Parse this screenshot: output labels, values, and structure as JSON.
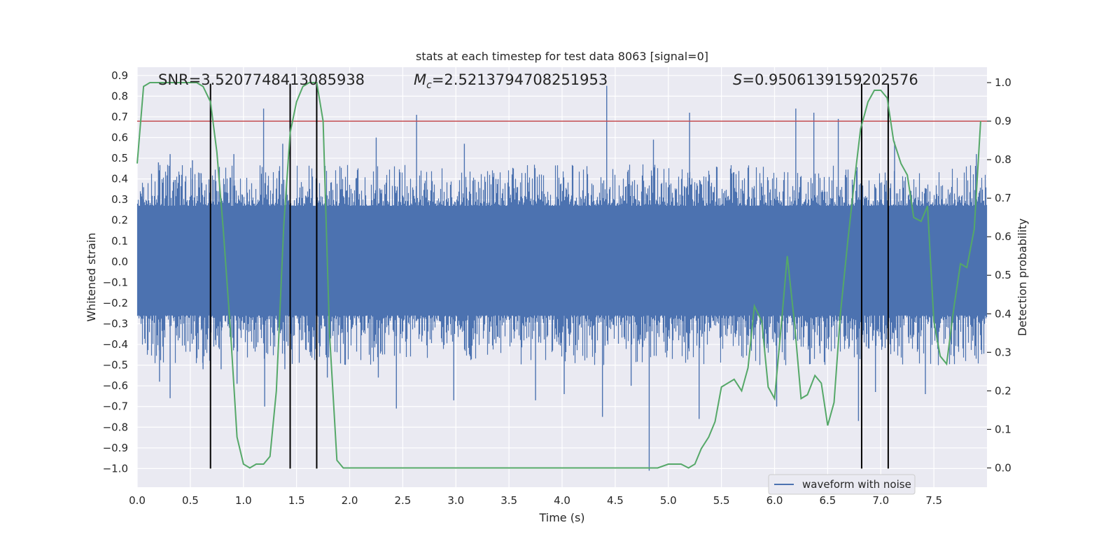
{
  "chart_data": {
    "type": "line",
    "title": "stats at each timestep for test data 8063 [signal=0]",
    "xlabel": "Time (s)",
    "ylabel_left": "Whitened strain",
    "ylabel_right": "Detection probability",
    "xlim": [
      0.0,
      8.0
    ],
    "ylim_left": [
      -1.09,
      0.94
    ],
    "ylim_right": [
      -0.05,
      1.04
    ],
    "x_ticks": [
      "0.0",
      "0.5",
      "1.0",
      "1.5",
      "2.0",
      "2.5",
      "3.0",
      "3.5",
      "4.0",
      "4.5",
      "5.0",
      "5.5",
      "6.0",
      "6.5",
      "7.0",
      "7.5"
    ],
    "y_left_ticks": [
      "0.9",
      "0.8",
      "0.7",
      "0.6",
      "0.5",
      "0.4",
      "0.3",
      "0.2",
      "0.1",
      "0.0",
      "−0.1",
      "−0.2",
      "−0.3",
      "−0.4",
      "−0.5",
      "−0.6",
      "−0.7",
      "−0.8",
      "−0.9",
      "−1.0"
    ],
    "y_right_ticks": [
      "1.0",
      "0.9",
      "0.8",
      "0.7",
      "0.6",
      "0.5",
      "0.4",
      "0.3",
      "0.2",
      "0.1",
      "0.0"
    ],
    "grid": true,
    "legend_position": "lower-right",
    "annotations": {
      "snr": "SNR=3.5207748413085938",
      "mc_symbol": "M",
      "mc_subscript": "c",
      "mc_value": "=2.5213794708251953",
      "s_symbol": "S",
      "s_value": "=0.9506139159202576"
    },
    "threshold": {
      "axis": "right",
      "value": 0.9,
      "color": "#c44e52"
    },
    "event_markers": {
      "x": [
        0.69,
        1.44,
        1.69,
        6.82,
        7.07
      ],
      "ymin": -1.0,
      "ymax": 0.86,
      "color": "#000000"
    },
    "series": [
      {
        "name": "waveform with noise",
        "axis": "left",
        "color": "#4c72b0",
        "envelope_base_upper": 0.27,
        "envelope_base_lower": -0.26,
        "typical_peak_upper": 0.42,
        "typical_peak_lower": -0.45,
        "spikes": [
          {
            "x": 0.06,
            "y": 0.36
          },
          {
            "x": 0.2,
            "y": 0.48
          },
          {
            "x": 0.21,
            "y": -0.58
          },
          {
            "x": 0.31,
            "y": 0.52
          },
          {
            "x": 0.31,
            "y": -0.66
          },
          {
            "x": 0.52,
            "y": 0.49
          },
          {
            "x": 0.62,
            "y": -0.52
          },
          {
            "x": 0.79,
            "y": -0.52
          },
          {
            "x": 0.91,
            "y": 0.52
          },
          {
            "x": 0.94,
            "y": -0.59
          },
          {
            "x": 1.19,
            "y": 0.74
          },
          {
            "x": 1.2,
            "y": -0.7
          },
          {
            "x": 1.37,
            "y": 0.57
          },
          {
            "x": 1.39,
            "y": -0.52
          },
          {
            "x": 1.79,
            "y": -0.56
          },
          {
            "x": 2.25,
            "y": 0.6
          },
          {
            "x": 2.27,
            "y": -0.56
          },
          {
            "x": 2.44,
            "y": -0.71
          },
          {
            "x": 2.63,
            "y": 0.71
          },
          {
            "x": 2.98,
            "y": -0.67
          },
          {
            "x": 3.08,
            "y": 0.57
          },
          {
            "x": 3.75,
            "y": -0.67
          },
          {
            "x": 4.02,
            "y": -0.64
          },
          {
            "x": 4.38,
            "y": -0.75
          },
          {
            "x": 4.42,
            "y": 0.85
          },
          {
            "x": 4.65,
            "y": -0.6
          },
          {
            "x": 4.82,
            "y": -1.01
          },
          {
            "x": 4.86,
            "y": 0.59
          },
          {
            "x": 5.2,
            "y": 0.72
          },
          {
            "x": 5.29,
            "y": -0.76
          },
          {
            "x": 6.02,
            "y": -0.7
          },
          {
            "x": 6.2,
            "y": 0.74
          },
          {
            "x": 6.37,
            "y": 0.72
          },
          {
            "x": 6.6,
            "y": 0.69
          },
          {
            "x": 6.79,
            "y": -0.77
          },
          {
            "x": 6.95,
            "y": -0.63
          },
          {
            "x": 7.13,
            "y": 0.58
          },
          {
            "x": 7.42,
            "y": -0.64
          },
          {
            "x": 7.9,
            "y": 0.52
          }
        ]
      },
      {
        "name": "",
        "axis": "right",
        "color": "#55a868",
        "x": [
          0.0,
          0.06,
          0.12,
          0.19,
          0.25,
          0.31,
          0.38,
          0.44,
          0.5,
          0.56,
          0.62,
          0.69,
          0.75,
          0.81,
          0.88,
          0.94,
          1.0,
          1.06,
          1.12,
          1.19,
          1.25,
          1.31,
          1.38,
          1.44,
          1.5,
          1.56,
          1.62,
          1.69,
          1.75,
          1.81,
          1.88,
          1.94,
          2.0,
          2.1,
          2.2,
          2.3,
          2.4,
          2.5,
          2.6,
          2.7,
          2.8,
          2.9,
          3.0,
          3.1,
          3.2,
          3.3,
          3.4,
          3.5,
          3.6,
          3.7,
          3.8,
          3.9,
          4.0,
          4.1,
          4.2,
          4.3,
          4.4,
          4.5,
          4.6,
          4.7,
          4.8,
          4.9,
          5.0,
          5.06,
          5.12,
          5.19,
          5.25,
          5.31,
          5.38,
          5.44,
          5.5,
          5.56,
          5.62,
          5.69,
          5.75,
          5.81,
          5.88,
          5.94,
          6.0,
          6.06,
          6.12,
          6.19,
          6.25,
          6.31,
          6.38,
          6.44,
          6.5,
          6.56,
          6.62,
          6.69,
          6.75,
          6.81,
          6.88,
          6.94,
          7.0,
          7.06,
          7.12,
          7.19,
          7.25,
          7.31,
          7.38,
          7.44,
          7.5,
          7.56,
          7.62,
          7.69,
          7.75,
          7.81,
          7.88,
          7.94
        ],
        "y": [
          0.79,
          0.99,
          1.0,
          1.0,
          1.0,
          1.0,
          1.0,
          1.0,
          1.0,
          1.0,
          0.99,
          0.95,
          0.82,
          0.62,
          0.35,
          0.08,
          0.01,
          0.0,
          0.01,
          0.01,
          0.03,
          0.2,
          0.63,
          0.87,
          0.95,
          0.99,
          1.0,
          1.0,
          0.9,
          0.35,
          0.02,
          0.0,
          0.0,
          0.0,
          0.0,
          0.0,
          0.0,
          0.0,
          0.0,
          0.0,
          0.0,
          0.0,
          0.0,
          0.0,
          0.0,
          0.0,
          0.0,
          0.0,
          0.0,
          0.0,
          0.0,
          0.0,
          0.0,
          0.0,
          0.0,
          0.0,
          0.0,
          0.0,
          0.0,
          0.0,
          0.0,
          0.0,
          0.01,
          0.01,
          0.01,
          0.0,
          0.01,
          0.05,
          0.08,
          0.12,
          0.21,
          0.22,
          0.23,
          0.2,
          0.26,
          0.42,
          0.38,
          0.21,
          0.18,
          0.36,
          0.55,
          0.37,
          0.18,
          0.19,
          0.24,
          0.22,
          0.11,
          0.17,
          0.4,
          0.59,
          0.74,
          0.88,
          0.95,
          0.98,
          0.98,
          0.96,
          0.85,
          0.79,
          0.76,
          0.65,
          0.64,
          0.68,
          0.38,
          0.29,
          0.27,
          0.42,
          0.53,
          0.52,
          0.62,
          0.9
        ]
      }
    ]
  }
}
